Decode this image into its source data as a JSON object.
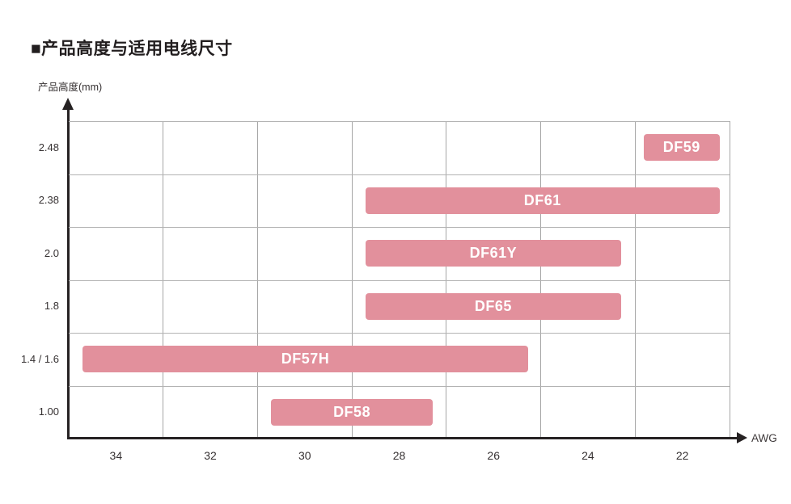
{
  "page": {
    "title": "■产品高度与适用电线尺寸"
  },
  "chart_data": {
    "type": "bar",
    "subtype": "horizontal-range",
    "title": "产品高度与适用电线尺寸",
    "x_axis": {
      "label": "AWG",
      "ticks": [
        "34",
        "32",
        "30",
        "28",
        "26",
        "24",
        "22"
      ],
      "note": "wire size decreases left to right in steps of 2 AWG, one grid cell per tick"
    },
    "y_axis": {
      "label": "产品高度(mm)",
      "ticks": [
        "2.48",
        "2.38",
        "2.0",
        "1.8",
        "1.4 / 1.6",
        "1.00"
      ]
    },
    "grid": true,
    "legend": false,
    "series": [
      {
        "name": "DF59",
        "product_height_mm": "2.48",
        "row": 0,
        "awg_span": [
          "22",
          "22"
        ],
        "x0": 0.87,
        "x1": 0.985
      },
      {
        "name": "DF61",
        "product_height_mm": "2.38",
        "row": 1,
        "awg_span": [
          "28",
          "22"
        ],
        "x0": 0.449,
        "x1": 0.985
      },
      {
        "name": "DF61Y",
        "product_height_mm": "2.0",
        "row": 2,
        "awg_span": [
          "28",
          "24"
        ],
        "x0": 0.449,
        "x1": 0.836
      },
      {
        "name": "DF65",
        "product_height_mm": "1.8",
        "row": 3,
        "awg_span": [
          "28",
          "24"
        ],
        "x0": 0.449,
        "x1": 0.836
      },
      {
        "name": "DF57H",
        "product_height_mm": "1.4 / 1.6",
        "row": 4,
        "awg_span": [
          "34",
          "26"
        ],
        "x0": 0.021,
        "x1": 0.695
      },
      {
        "name": "DF58",
        "product_height_mm": "1.00",
        "row": 5,
        "awg_span": [
          "30",
          "28"
        ],
        "x0": 0.306,
        "x1": 0.551
      }
    ],
    "colors": {
      "bar": "#e2909c",
      "bar_label": "#ffffff",
      "grid": "#a6a6a6",
      "axis": "#262223"
    }
  }
}
